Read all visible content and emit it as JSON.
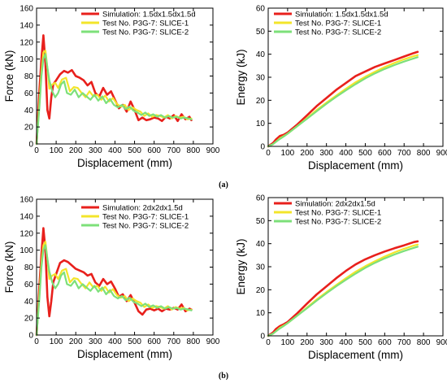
{
  "panel_labels": [
    "(a)",
    "(b)"
  ],
  "chart_data": [
    {
      "type": "line",
      "xlabel": "Displacement (mm)",
      "ylabel": "Force (kN)",
      "xlim": [
        0,
        900
      ],
      "ylim": [
        0,
        160
      ],
      "xticks": [
        0,
        100,
        200,
        300,
        400,
        500,
        600,
        700,
        800,
        900
      ],
      "yticks": [
        0,
        20,
        40,
        60,
        80,
        100,
        120,
        140,
        160
      ],
      "grid": false,
      "legend": "top-right",
      "series": [
        {
          "name": "Simulation: 1.5dx1.5dx1.5d",
          "color": "#e8201c",
          "x": [
            0,
            15,
            25,
            35,
            45,
            55,
            65,
            75,
            85,
            100,
            120,
            140,
            160,
            180,
            200,
            220,
            240,
            260,
            280,
            300,
            320,
            340,
            360,
            380,
            400,
            420,
            440,
            460,
            480,
            500,
            520,
            540,
            560,
            580,
            600,
            620,
            640,
            660,
            680,
            700,
            720,
            740,
            760,
            780,
            790
          ],
          "y": [
            0,
            65,
            100,
            128,
            95,
            40,
            30,
            55,
            70,
            75,
            82,
            86,
            84,
            87,
            80,
            78,
            75,
            69,
            73,
            60,
            56,
            66,
            58,
            62,
            52,
            42,
            46,
            38,
            50,
            40,
            28,
            31,
            28,
            29,
            31,
            30,
            27,
            32,
            30,
            34,
            27,
            35,
            29,
            32,
            28
          ]
        },
        {
          "name": "Test No. P3G-7: SLICE-1",
          "color": "#f3e52b",
          "x": [
            0,
            15,
            25,
            35,
            45,
            55,
            65,
            80,
            95,
            110,
            130,
            150,
            170,
            190,
            210,
            230,
            250,
            270,
            290,
            310,
            330,
            350,
            370,
            390,
            410,
            430,
            450,
            470,
            490,
            510,
            530,
            550,
            570,
            590,
            610,
            630,
            650,
            670,
            690,
            710,
            730,
            750,
            770,
            790
          ],
          "y": [
            0,
            50,
            85,
            108,
            110,
            90,
            65,
            70,
            72,
            66,
            76,
            78,
            62,
            67,
            66,
            60,
            55,
            62,
            56,
            58,
            52,
            57,
            50,
            54,
            47,
            44,
            46,
            40,
            43,
            40,
            38,
            33,
            36,
            32,
            34,
            33,
            31,
            34,
            30,
            33,
            31,
            32,
            29,
            30
          ]
        },
        {
          "name": "Test No. P3G-7: SLICE-2",
          "color": "#7de07a",
          "x": [
            0,
            15,
            25,
            35,
            45,
            55,
            65,
            80,
            95,
            110,
            125,
            140,
            155,
            175,
            195,
            215,
            235,
            255,
            275,
            295,
            315,
            335,
            355,
            375,
            395,
            415,
            435,
            455,
            475,
            495,
            515,
            535,
            555,
            575,
            595,
            615,
            635,
            655,
            675,
            695,
            715,
            735,
            755,
            775,
            790
          ],
          "y": [
            0,
            45,
            80,
            100,
            106,
            90,
            75,
            62,
            55,
            60,
            70,
            74,
            60,
            58,
            64,
            55,
            60,
            56,
            52,
            58,
            51,
            56,
            48,
            53,
            46,
            43,
            46,
            41,
            44,
            39,
            37,
            34,
            37,
            33,
            35,
            32,
            34,
            31,
            33,
            31,
            32,
            30,
            31,
            30,
            29
          ]
        }
      ]
    },
    {
      "type": "line",
      "xlabel": "Displacement (mm)",
      "ylabel": "Energy (kJ)",
      "xlim": [
        0,
        900
      ],
      "ylim": [
        0,
        60
      ],
      "xticks": [
        0,
        100,
        200,
        300,
        400,
        500,
        600,
        700,
        800,
        900
      ],
      "yticks": [
        0,
        10,
        20,
        30,
        40,
        50,
        60
      ],
      "grid": false,
      "legend": "top-left",
      "series": [
        {
          "name": "Simulation: 1.5dx1.5dx1.5d",
          "color": "#e8201c",
          "x": [
            0,
            25,
            40,
            60,
            80,
            100,
            150,
            200,
            250,
            300,
            350,
            400,
            450,
            500,
            550,
            600,
            650,
            700,
            750,
            770
          ],
          "y": [
            0,
            1.5,
            3,
            4.5,
            5,
            6,
            9.5,
            13.5,
            17.5,
            21,
            24.5,
            27.5,
            30.5,
            32.5,
            34.5,
            36,
            37.5,
            39,
            40.5,
            41
          ]
        },
        {
          "name": "Test No. P3G-7: SLICE-1",
          "color": "#f3e52b",
          "x": [
            0,
            25,
            40,
            60,
            80,
            100,
            150,
            200,
            250,
            300,
            350,
            400,
            450,
            500,
            550,
            600,
            650,
            700,
            750,
            770
          ],
          "y": [
            0,
            1,
            2,
            3.5,
            4.5,
            5.5,
            8.8,
            12.3,
            15.8,
            19,
            22,
            25,
            27.8,
            30.2,
            32.4,
            34.4,
            36.2,
            37.8,
            39.2,
            39.6
          ]
        },
        {
          "name": "Test No. P3G-7: SLICE-2",
          "color": "#7de07a",
          "x": [
            0,
            25,
            40,
            60,
            80,
            100,
            150,
            200,
            250,
            300,
            350,
            400,
            450,
            500,
            550,
            600,
            650,
            700,
            750,
            770
          ],
          "y": [
            0,
            1,
            2,
            3.2,
            4.3,
            5.5,
            8.8,
            12,
            15.3,
            18.5,
            21.5,
            24.3,
            27,
            29.5,
            31.7,
            33.6,
            35.3,
            36.8,
            38.2,
            38.7
          ]
        }
      ]
    },
    {
      "type": "line",
      "xlabel": "Displacement (mm)",
      "ylabel": "Force (kN)",
      "xlim": [
        0,
        900
      ],
      "ylim": [
        0,
        160
      ],
      "xticks": [
        0,
        100,
        200,
        300,
        400,
        500,
        600,
        700,
        800,
        900
      ],
      "yticks": [
        0,
        20,
        40,
        60,
        80,
        100,
        120,
        140,
        160
      ],
      "grid": false,
      "legend": "top-right",
      "series": [
        {
          "name": "Simulation: 2dx2dx1.5d",
          "color": "#e8201c",
          "x": [
            0,
            15,
            25,
            35,
            45,
            55,
            65,
            75,
            85,
            100,
            120,
            140,
            160,
            180,
            200,
            220,
            240,
            260,
            280,
            300,
            320,
            340,
            360,
            380,
            400,
            420,
            440,
            460,
            480,
            500,
            520,
            540,
            560,
            580,
            600,
            620,
            640,
            660,
            680,
            700,
            720,
            740,
            760,
            780,
            790
          ],
          "y": [
            0,
            60,
            95,
            126,
            100,
            45,
            22,
            40,
            62,
            72,
            85,
            88,
            86,
            82,
            78,
            76,
            74,
            70,
            72,
            62,
            58,
            66,
            60,
            63,
            55,
            45,
            48,
            40,
            47,
            38,
            28,
            24,
            30,
            31,
            29,
            31,
            28,
            31,
            30,
            32,
            30,
            36,
            28,
            31,
            30
          ]
        },
        {
          "name": "Test No. P3G-7: SLICE-1",
          "color": "#f3e52b",
          "x": [
            0,
            15,
            25,
            35,
            45,
            55,
            65,
            80,
            95,
            110,
            130,
            150,
            170,
            190,
            210,
            230,
            250,
            270,
            290,
            310,
            330,
            350,
            370,
            390,
            410,
            430,
            450,
            470,
            490,
            510,
            530,
            550,
            570,
            590,
            610,
            630,
            650,
            670,
            690,
            710,
            730,
            750,
            770,
            790
          ],
          "y": [
            0,
            50,
            85,
            106,
            110,
            90,
            66,
            70,
            72,
            66,
            76,
            78,
            62,
            67,
            66,
            60,
            55,
            62,
            56,
            58,
            52,
            57,
            50,
            54,
            47,
            44,
            46,
            40,
            43,
            40,
            38,
            33,
            36,
            32,
            34,
            33,
            31,
            34,
            30,
            33,
            31,
            32,
            29,
            30
          ]
        },
        {
          "name": "Test No. P3G-7: SLICE-2",
          "color": "#7de07a",
          "x": [
            0,
            15,
            25,
            35,
            45,
            55,
            65,
            80,
            95,
            110,
            125,
            140,
            155,
            175,
            195,
            215,
            235,
            255,
            275,
            295,
            315,
            335,
            355,
            375,
            395,
            415,
            435,
            455,
            475,
            495,
            515,
            535,
            555,
            575,
            595,
            615,
            635,
            655,
            675,
            695,
            715,
            735,
            755,
            775,
            790
          ],
          "y": [
            0,
            45,
            80,
            100,
            106,
            90,
            75,
            62,
            55,
            60,
            70,
            74,
            60,
            58,
            64,
            55,
            60,
            56,
            52,
            58,
            51,
            56,
            48,
            53,
            46,
            43,
            46,
            41,
            44,
            39,
            37,
            34,
            37,
            33,
            35,
            32,
            34,
            31,
            33,
            31,
            32,
            30,
            31,
            30,
            29
          ]
        }
      ]
    },
    {
      "type": "line",
      "xlabel": "Displacement (mm)",
      "ylabel": "Energy (kJ)",
      "xlim": [
        0,
        900
      ],
      "ylim": [
        0,
        60
      ],
      "xticks": [
        0,
        100,
        200,
        300,
        400,
        500,
        600,
        700,
        800,
        900
      ],
      "yticks": [
        0,
        10,
        20,
        30,
        40,
        50,
        60
      ],
      "grid": false,
      "legend": "top-left",
      "series": [
        {
          "name": "Simulation: 2dx2dx1.5d",
          "color": "#e8201c",
          "x": [
            0,
            25,
            40,
            60,
            80,
            100,
            150,
            200,
            250,
            300,
            350,
            400,
            450,
            500,
            550,
            600,
            650,
            700,
            750,
            770
          ],
          "y": [
            0,
            1.5,
            3,
            4.2,
            5,
            6,
            9.8,
            14,
            18,
            21.5,
            25,
            28.2,
            31,
            33.2,
            35,
            36.6,
            38,
            39.3,
            40.7,
            41
          ]
        },
        {
          "name": "Test No. P3G-7: SLICE-1",
          "color": "#f3e52b",
          "x": [
            0,
            25,
            40,
            60,
            80,
            100,
            150,
            200,
            250,
            300,
            350,
            400,
            450,
            500,
            550,
            600,
            650,
            700,
            750,
            770
          ],
          "y": [
            0,
            1,
            2,
            3.5,
            4.5,
            5.5,
            8.8,
            12.3,
            15.8,
            19,
            22,
            25,
            27.8,
            30.2,
            32.4,
            34.4,
            36.2,
            37.8,
            39.2,
            39.6
          ]
        },
        {
          "name": "Test No. P3G-7: SLICE-2",
          "color": "#7de07a",
          "x": [
            0,
            25,
            40,
            60,
            80,
            100,
            150,
            200,
            250,
            300,
            350,
            400,
            450,
            500,
            550,
            600,
            650,
            700,
            750,
            770
          ],
          "y": [
            0,
            1,
            2,
            3.2,
            4.3,
            5.5,
            8.8,
            12,
            15.3,
            18.5,
            21.5,
            24.3,
            27,
            29.5,
            31.7,
            33.6,
            35.3,
            36.8,
            38.2,
            38.7
          ]
        }
      ]
    }
  ]
}
